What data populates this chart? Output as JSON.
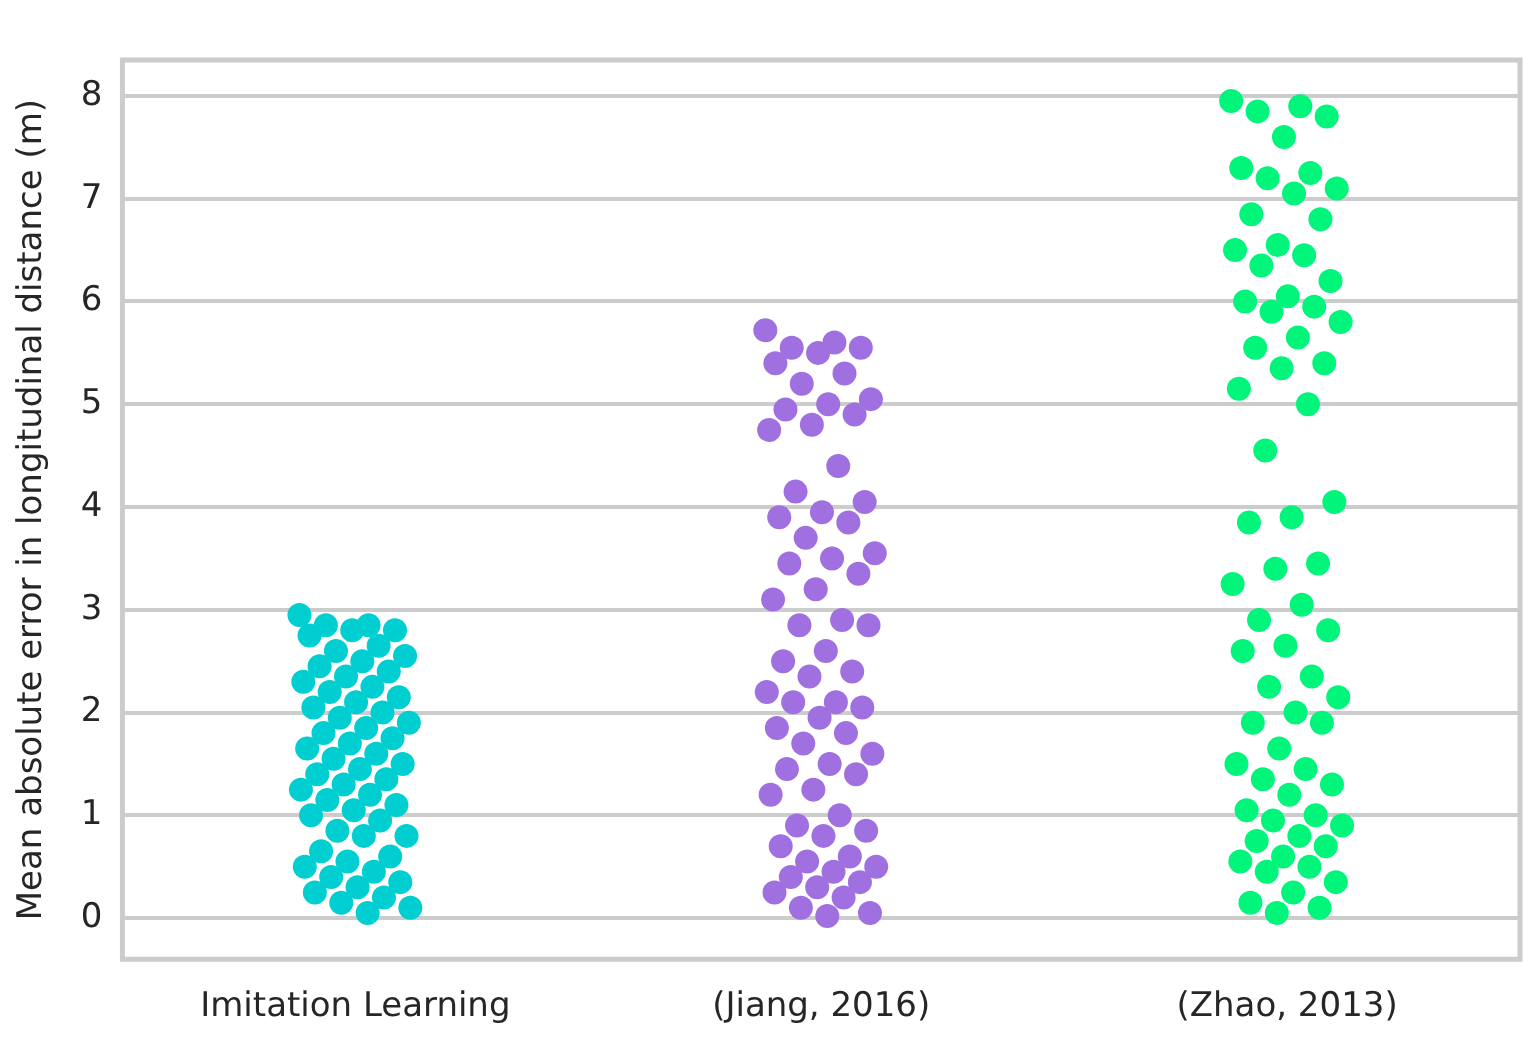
{
  "chart_data": {
    "type": "scatter",
    "ylabel": "Mean absolute error in longitudinal distance (m)",
    "categories": [
      "Imitation Learning",
      "(Jiang, 2016)",
      "(Zhao, 2013)"
    ],
    "ylim": [
      -0.4,
      8.35
    ],
    "yticks": [
      0,
      1,
      2,
      3,
      4,
      5,
      6,
      7,
      8
    ],
    "grid": "y",
    "marker": "circle",
    "series": [
      {
        "color": "#00ced1",
        "x": [
          "Imitation Learning",
          "Imitation Learning",
          "Imitation Learning",
          "Imitation Learning",
          "Imitation Learning",
          "Imitation Learning",
          "Imitation Learning",
          "Imitation Learning",
          "Imitation Learning",
          "Imitation Learning",
          "Imitation Learning",
          "Imitation Learning",
          "Imitation Learning",
          "Imitation Learning",
          "Imitation Learning",
          "Imitation Learning",
          "Imitation Learning",
          "Imitation Learning",
          "Imitation Learning",
          "Imitation Learning",
          "Imitation Learning",
          "Imitation Learning",
          "Imitation Learning",
          "Imitation Learning",
          "Imitation Learning",
          "Imitation Learning",
          "Imitation Learning",
          "Imitation Learning",
          "Imitation Learning",
          "Imitation Learning",
          "Imitation Learning",
          "Imitation Learning",
          "Imitation Learning",
          "Imitation Learning",
          "Imitation Learning",
          "Imitation Learning",
          "Imitation Learning",
          "Imitation Learning",
          "Imitation Learning",
          "Imitation Learning",
          "Imitation Learning",
          "Imitation Learning",
          "Imitation Learning",
          "Imitation Learning",
          "Imitation Learning",
          "Imitation Learning",
          "Imitation Learning",
          "Imitation Learning",
          "Imitation Learning",
          "Imitation Learning",
          "Imitation Learning",
          "Imitation Learning",
          "Imitation Learning",
          "Imitation Learning",
          "Imitation Learning",
          "Imitation Learning",
          "Imitation Learning"
        ],
        "values": [
          2.95,
          2.85,
          2.85,
          2.8,
          2.8,
          2.75,
          2.65,
          2.6,
          2.55,
          2.5,
          2.45,
          2.4,
          2.35,
          2.3,
          2.25,
          2.2,
          2.15,
          2.1,
          2.05,
          2.0,
          1.95,
          1.9,
          1.85,
          1.8,
          1.75,
          1.7,
          1.65,
          1.6,
          1.55,
          1.5,
          1.45,
          1.4,
          1.35,
          1.3,
          1.25,
          1.2,
          1.15,
          1.1,
          1.05,
          1.0,
          0.95,
          0.85,
          0.8,
          0.8,
          0.65,
          0.6,
          0.55,
          0.5,
          0.45,
          0.4,
          0.35,
          0.3,
          0.25,
          0.2,
          0.15,
          0.1,
          0.05
        ]
      },
      {
        "color": "#a070e0",
        "x": [
          "(Jiang, 2016)",
          "(Jiang, 2016)",
          "(Jiang, 2016)",
          "(Jiang, 2016)",
          "(Jiang, 2016)",
          "(Jiang, 2016)",
          "(Jiang, 2016)",
          "(Jiang, 2016)",
          "(Jiang, 2016)",
          "(Jiang, 2016)",
          "(Jiang, 2016)",
          "(Jiang, 2016)",
          "(Jiang, 2016)",
          "(Jiang, 2016)",
          "(Jiang, 2016)",
          "(Jiang, 2016)",
          "(Jiang, 2016)",
          "(Jiang, 2016)",
          "(Jiang, 2016)",
          "(Jiang, 2016)",
          "(Jiang, 2016)",
          "(Jiang, 2016)",
          "(Jiang, 2016)",
          "(Jiang, 2016)",
          "(Jiang, 2016)",
          "(Jiang, 2016)",
          "(Jiang, 2016)",
          "(Jiang, 2016)",
          "(Jiang, 2016)",
          "(Jiang, 2016)",
          "(Jiang, 2016)",
          "(Jiang, 2016)",
          "(Jiang, 2016)",
          "(Jiang, 2016)",
          "(Jiang, 2016)",
          "(Jiang, 2016)",
          "(Jiang, 2016)",
          "(Jiang, 2016)",
          "(Jiang, 2016)",
          "(Jiang, 2016)",
          "(Jiang, 2016)",
          "(Jiang, 2016)",
          "(Jiang, 2016)",
          "(Jiang, 2016)",
          "(Jiang, 2016)",
          "(Jiang, 2016)",
          "(Jiang, 2016)",
          "(Jiang, 2016)",
          "(Jiang, 2016)",
          "(Jiang, 2016)",
          "(Jiang, 2016)",
          "(Jiang, 2016)",
          "(Jiang, 2016)",
          "(Jiang, 2016)",
          "(Jiang, 2016)",
          "(Jiang, 2016)",
          "(Jiang, 2016)",
          "(Jiang, 2016)",
          "(Jiang, 2016)",
          "(Jiang, 2016)",
          "(Jiang, 2016)",
          "(Jiang, 2016)",
          "(Jiang, 2016)",
          "(Jiang, 2016)",
          "(Jiang, 2016)"
        ],
        "values": [
          5.72,
          5.6,
          5.55,
          5.55,
          5.5,
          5.4,
          5.3,
          5.2,
          5.05,
          5.0,
          4.95,
          4.9,
          4.8,
          4.75,
          4.4,
          4.15,
          4.05,
          3.95,
          3.9,
          3.85,
          3.7,
          3.55,
          3.5,
          3.45,
          3.35,
          3.2,
          3.1,
          2.9,
          2.85,
          2.85,
          2.6,
          2.5,
          2.4,
          2.35,
          2.2,
          2.1,
          2.1,
          2.05,
          1.95,
          1.85,
          1.8,
          1.7,
          1.6,
          1.5,
          1.45,
          1.4,
          1.25,
          1.2,
          1.0,
          0.9,
          0.85,
          0.8,
          0.7,
          0.6,
          0.55,
          0.5,
          0.45,
          0.4,
          0.35,
          0.3,
          0.25,
          0.2,
          0.1,
          0.05,
          0.02
        ]
      },
      {
        "color": "#00f57a",
        "x": [
          "(Zhao, 2013)",
          "(Zhao, 2013)",
          "(Zhao, 2013)",
          "(Zhao, 2013)",
          "(Zhao, 2013)",
          "(Zhao, 2013)",
          "(Zhao, 2013)",
          "(Zhao, 2013)",
          "(Zhao, 2013)",
          "(Zhao, 2013)",
          "(Zhao, 2013)",
          "(Zhao, 2013)",
          "(Zhao, 2013)",
          "(Zhao, 2013)",
          "(Zhao, 2013)",
          "(Zhao, 2013)",
          "(Zhao, 2013)",
          "(Zhao, 2013)",
          "(Zhao, 2013)",
          "(Zhao, 2013)",
          "(Zhao, 2013)",
          "(Zhao, 2013)",
          "(Zhao, 2013)",
          "(Zhao, 2013)",
          "(Zhao, 2013)",
          "(Zhao, 2013)",
          "(Zhao, 2013)",
          "(Zhao, 2013)",
          "(Zhao, 2013)",
          "(Zhao, 2013)",
          "(Zhao, 2013)",
          "(Zhao, 2013)",
          "(Zhao, 2013)",
          "(Zhao, 2013)",
          "(Zhao, 2013)",
          "(Zhao, 2013)",
          "(Zhao, 2013)",
          "(Zhao, 2013)",
          "(Zhao, 2013)",
          "(Zhao, 2013)",
          "(Zhao, 2013)",
          "(Zhao, 2013)",
          "(Zhao, 2013)",
          "(Zhao, 2013)",
          "(Zhao, 2013)",
          "(Zhao, 2013)",
          "(Zhao, 2013)",
          "(Zhao, 2013)",
          "(Zhao, 2013)",
          "(Zhao, 2013)",
          "(Zhao, 2013)",
          "(Zhao, 2013)",
          "(Zhao, 2013)",
          "(Zhao, 2013)",
          "(Zhao, 2013)",
          "(Zhao, 2013)",
          "(Zhao, 2013)",
          "(Zhao, 2013)",
          "(Zhao, 2013)",
          "(Zhao, 2013)",
          "(Zhao, 2013)",
          "(Zhao, 2013)",
          "(Zhao, 2013)",
          "(Zhao, 2013)",
          "(Zhao, 2013)",
          "(Zhao, 2013)",
          "(Zhao, 2013)",
          "(Zhao, 2013)"
        ],
        "values": [
          7.95,
          7.9,
          7.85,
          7.8,
          7.6,
          7.3,
          7.25,
          7.2,
          7.1,
          7.05,
          6.85,
          6.8,
          6.55,
          6.5,
          6.45,
          6.35,
          6.2,
          6.05,
          6.0,
          5.95,
          5.9,
          5.8,
          5.65,
          5.55,
          5.4,
          5.35,
          5.15,
          5.0,
          4.55,
          4.05,
          3.9,
          3.85,
          3.45,
          3.4,
          3.25,
          3.05,
          2.9,
          2.8,
          2.65,
          2.6,
          2.35,
          2.25,
          2.15,
          2.0,
          1.9,
          1.9,
          1.65,
          1.5,
          1.45,
          1.35,
          1.3,
          1.2,
          1.05,
          1.0,
          0.95,
          0.9,
          0.8,
          0.75,
          0.7,
          0.6,
          0.55,
          0.5,
          0.45,
          0.35,
          0.25,
          0.15,
          0.1,
          0.05
        ]
      }
    ]
  }
}
